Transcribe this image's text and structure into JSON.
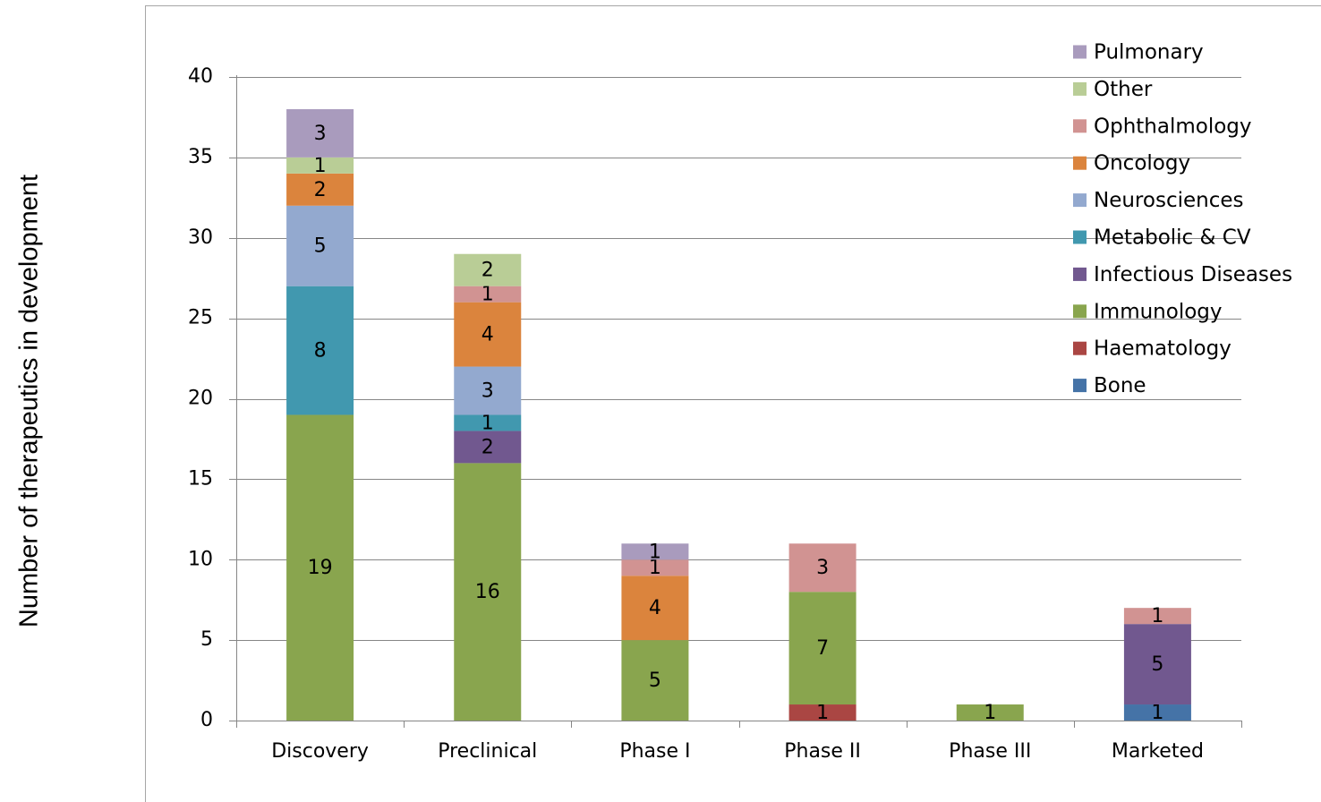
{
  "chart_data": {
    "type": "bar",
    "stacked": true,
    "title": "",
    "xlabel": "",
    "ylabel": "Number of therapeutics in development",
    "ylim": [
      0,
      40
    ],
    "yticks": [
      0,
      5,
      10,
      15,
      20,
      25,
      30,
      35,
      40
    ],
    "grid": true,
    "legend_position": "top-right",
    "categories": [
      "Discovery",
      "Preclinical",
      "Phase I",
      "Phase II",
      "Phase III",
      "Marketed"
    ],
    "series": [
      {
        "name": "Bone",
        "color": "#4573A7",
        "values": [
          0,
          0,
          0,
          0,
          0,
          1
        ]
      },
      {
        "name": "Haematology",
        "color": "#AA4643",
        "values": [
          0,
          0,
          0,
          1,
          0,
          0
        ]
      },
      {
        "name": "Immunology",
        "color": "#89A54E",
        "values": [
          19,
          16,
          5,
          7,
          1,
          0
        ]
      },
      {
        "name": "Infectious Diseases",
        "color": "#71588F",
        "values": [
          0,
          2,
          0,
          0,
          0,
          5
        ]
      },
      {
        "name": "Metabolic & CV",
        "color": "#4198AF",
        "values": [
          8,
          1,
          0,
          0,
          0,
          0
        ]
      },
      {
        "name": "Neurosciences",
        "color": "#93A9CF",
        "values": [
          5,
          3,
          0,
          0,
          0,
          0
        ]
      },
      {
        "name": "Oncology",
        "color": "#DB843D",
        "values": [
          2,
          4,
          4,
          0,
          0,
          0
        ]
      },
      {
        "name": "Ophthalmology",
        "color": "#D19392",
        "values": [
          0,
          1,
          1,
          3,
          0,
          1
        ]
      },
      {
        "name": "Other",
        "color": "#B9CD96",
        "values": [
          1,
          2,
          0,
          0,
          0,
          0
        ]
      },
      {
        "name": "Pulmonary",
        "color": "#A99BBD",
        "values": [
          3,
          0,
          1,
          0,
          0,
          0
        ]
      }
    ]
  }
}
